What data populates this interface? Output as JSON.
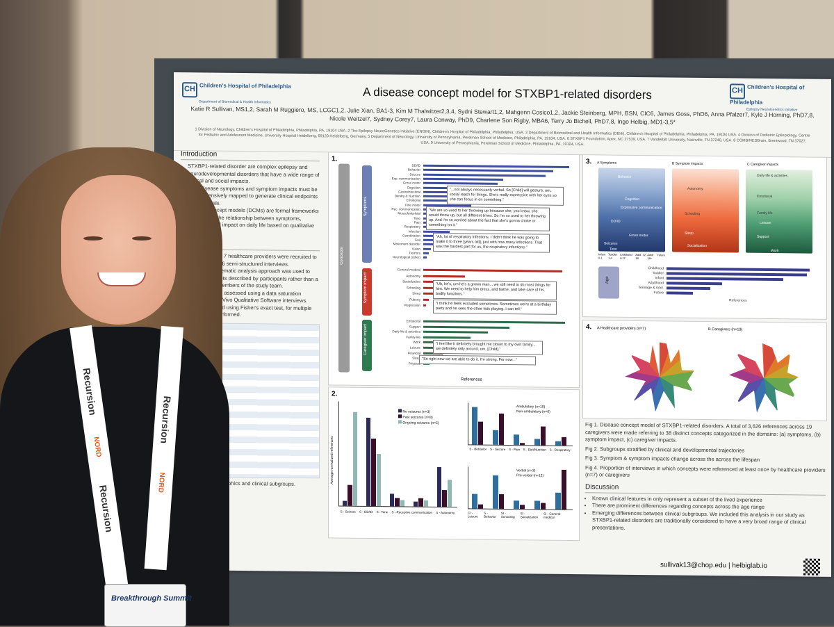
{
  "poster": {
    "org_left": "Children's Hospital of Philadelphia",
    "org_left_sub": "Department of Biomedical & Health Informatics",
    "org_right": "Children's Hospital of Philadelphia",
    "org_right_sub": "Epilepsy NeuroGenetics Initiative",
    "title": "A disease concept model for STXBP1-related disorders",
    "authors": "Katie R Sullivan, MS1,2, Sarah M Ruggiero, MS, LCGC1,2, Julie Xian, BA1-3, Kim M Thalwitzer2,3,4, Sydni Stewart1,2, Mahgenn Cosico1,2, Jackie Steinberg, MPH, BSN, CIC6, James Goss, PhD6, Anna Pfalzer7, Kyle J Horning, PhD7,8, Nicole Weitzel7, Sydney Corey7, Laura Conway, PhD9, Charlene Son Rigby, MBA6, Terry Jo Bichell, PhD7,8, Ingo Helbig, MD1-3,5*",
    "affiliations": "1 Division of Neurology, Children's Hospital of Philadelphia, Philadelphia, PA, 19104 USA. 2 The Epilepsy NeuroGenetics Initiative (ENGIN), Children's Hospital of Philadelphia, Philadelphia, USA. 3 Department of Biomedical and Health Informatics (DBHi), Children's Hospital of Philadelphia, Philadelphia, PA, 19104 USA. 4 Division of Pediatric Epileptology, Centre for Pediatric and Adolescent Medicine, University Hospital Heidelberg, 69120 Heidelberg, Germany. 5 Department of Neurology, University of Pennsylvania, Perelman School of Medicine, Philadelphia, PA, 19104, USA. 6 STXBP1 Foundation, Apex, NC 27539, USA. 7 Vanderbilt University, Nashville, TN 37240, USA. 8 COMBINEDBrain, Brentwood, TN 37027, USA. 9 University of Pennsylvania, Perelman School of Medicine, Philadelphia, PA, 19104, USA.",
    "intro_heading": "Introduction",
    "intro_bullets": [
      "STXBP1-related disorder are complex epilepsy and neurodevelopmental disorders that have a wide range of clinical and social impacts.",
      "Rare disease symptoms and symptom impacts must be comprehensively mapped to generate clinical endpoints in future trials.",
      "Disease concept models (DCMs) are formal frameworks that capture the relationship between symptoms, concerns, and impact on daily life based on qualitative interviews."
    ],
    "methods_heading": "Methods",
    "methods_bullets": [
      "caregivers and 7 healthcare providers were recruited to participate in 16 semi-structured interviews.",
      "A deductive thematic analysis approach was used to identify concepts described by participants rather than a priori by two members of the study team.",
      "Saturation was assessed using a data saturation generated in NVivo Qualitative Software interviews.",
      "was determined using Fisher's exact test, for multiple testing was performed."
    ],
    "table_caption": "Participant demographics and clinical subgroups.",
    "fig1_concepts_label": "Concepts",
    "fig1a_label": "Symptoms",
    "fig1b_label": "Symptom impact",
    "fig1c_label": "Caregiver impact",
    "fig1_xlabel": "References",
    "quotes": [
      "\"...not always necessarily verbal. So [Child] will gesture, um, social reach for things. She's really expressive with her eyes so she can focus in on something.\"",
      "\"We are so used to her throwing up because she, you know, she would throw up, but all different times. So I'm so used to her throwing up. And I'm so worried about the fact that she's gonna choke or something on it.\"",
      "\"Ah, lot of respiratory infections. I didn't think he was going to make it to three [years old], just with how many infections. That was the hardest part for us, the respiratory infections.\"",
      "\"Uh, he's, um he's a grown man... we still need to do most things for him. We need to help him dress, and bathe, and take care of his bodily functions.\"",
      "\"I think he feels excluded sometimes. Sometimes we're at a birthday party and he sees the other kids playing. I can tell.\"",
      "\"I feel like it definitely brought me closer to my own family... we definitely rally around, um, [Child].\"",
      "\"So right now we are able to do it. I'm strong. For now...\""
    ],
    "fig3_age_label": "Age",
    "fig3_panel_titles": [
      "A Symptoms",
      "B Symptom impacts",
      "C Caregiver impacts"
    ],
    "fig3_stack_labels": [
      "Behavior",
      "Cognition",
      "Expressive communication",
      "DD/ID",
      "Gross motor",
      "Seizures",
      "Tone",
      "Autonomy",
      "Schooling",
      "Sleep",
      "Socialization",
      "Daily life & activities",
      "Emotional",
      "Family life",
      "Leisure",
      "Support",
      "Work"
    ],
    "fig3_xticks": [
      "Infant 0-1",
      "Toddler 1-4",
      "Childhood 4-12",
      "Adol. 12-18",
      "Adult 18+",
      "Future"
    ],
    "fig4_title_a": "A Healthcare providers (n=7)",
    "fig4_title_b": "B Caregivers (n=19)",
    "legend_seizures": [
      "No seizures (n=3)",
      "Past seizures (n=8)",
      "Ongoing seizures (n=5)"
    ],
    "legend_ambulatory": [
      "Ambulatory (n=10)",
      "Non-ambulatory (n=6)"
    ],
    "legend_verbal": [
      "Verbal (n=3)",
      "Pre-verbal (n=12)"
    ],
    "fig2_ylabel": "Average normalized references",
    "fig2a_xticks": [
      "S - Seizure",
      "S - DD/ID",
      "S - Tone",
      "S - Receptive communication",
      "S - Autonomy"
    ],
    "fig2b_xticks": [
      "S - Behavior",
      "S - Seizure",
      "S - Pain",
      "S - Diet/Nutrition",
      "S - Respiratory"
    ],
    "fig2c_xticks": [
      "CI - Leisure",
      "S - Behavior",
      "SI - Schooling",
      "SI - Socialization",
      "SI - General medical"
    ],
    "captions": [
      "Fig 1. Disease concept model of STXBP1-related disorders. A total of 3,626 references across 19 caregivers were made referring to 38 distinct concepts categorized in the domains: (a) symptoms, (b) symptom impact, (c) caregiver impacts.",
      "Fig 2. Subgroups stratified by clinical and developmental trajectories",
      "Fig 3. Symptom & symptom impacts change across the across the lifespan",
      "Fig 4. Proportion of interviews in which concepts were referenced at least once by healthcare providers (n=7) or caregivers"
    ],
    "discussion_heading": "Discussion",
    "discussion_bullets": [
      "Known clinical features in only represent a subset of the lived experience",
      "There are prominent differences regarding concepts across the age range",
      "Emerging differences between clinical subgroups. We included this analysis in our study as STXBP1-related disorders are traditionally considered to have a very broad range of clinical presentations."
    ],
    "contact": "sullivak13@chop.edu  |  helbiglab.io"
  },
  "lanyard": {
    "brand": "Recursion",
    "sponsor": "NORD"
  },
  "badge": {
    "text": "Breakthrough Summit"
  },
  "chart_data": [
    {
      "type": "bar",
      "title": "",
      "orientation": "horizontal",
      "categories": [
        "DD/ID",
        "Behavior",
        "Seizure",
        "Exp. communication",
        "Gross motor",
        "Cognition",
        "Gastrointestinal",
        "Dietary & Nutrition",
        "Emotional",
        "Fine motor",
        "Rec. communication",
        "Musculoskeletal",
        "Tone",
        "Pain",
        "Respiratory",
        "Infection",
        "Coordination",
        "Gait",
        "Movement disorder",
        "Vision",
        "Tremors",
        "Neurological (other)"
      ],
      "values": [
        275,
        245,
        230,
        150,
        140,
        120,
        110,
        100,
        95,
        90,
        80,
        75,
        70,
        60,
        55,
        50,
        40,
        30,
        22,
        15,
        10,
        6
      ],
      "xlabel": "",
      "xlim": [
        0,
        275
      ]
    },
    {
      "type": "bar",
      "orientation": "horizontal",
      "categories": [
        "General medical",
        "Autonomy",
        "Socialization",
        "Schooling",
        "Sleep",
        "Puberty",
        "Regression"
      ],
      "values": [
        400,
        120,
        85,
        70,
        30,
        15,
        8
      ],
      "xlim": [
        0,
        420
      ]
    },
    {
      "type": "bar",
      "orientation": "horizontal",
      "categories": [
        "Emotional",
        "Support",
        "Daily life & activities",
        "Family life",
        "Work",
        "Leisure",
        "Financial",
        "Sleep",
        "Physical"
      ],
      "values": [
        330,
        200,
        150,
        110,
        80,
        60,
        45,
        30,
        15
      ],
      "xlabel": "References",
      "xlim": [
        0,
        340
      ]
    },
    {
      "type": "bar",
      "orientation": "horizontal",
      "categories": [
        "Childhood",
        "Toddler",
        "Infant",
        "Adulthood",
        "Teenage & Adol.",
        "Future"
      ],
      "values": [
        245,
        240,
        200,
        95,
        75,
        45
      ],
      "xlabel": "References",
      "xlim": [
        0,
        250
      ]
    }
  ]
}
